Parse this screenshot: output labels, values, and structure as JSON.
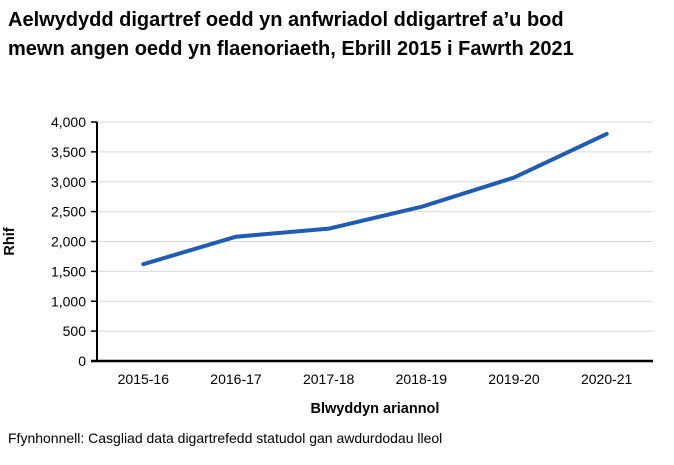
{
  "header": {
    "title": "Aelwydydd digartref oedd yn anfwriadol ddigartref a’u bod mewn angen oedd yn flaenoriaeth, Ebrill 2015 i Fawrth 2021"
  },
  "footer": {
    "source": "Ffynhonnell: Casgliad data digartrefedd statudol gan awdurdodau lleol"
  },
  "chart_data": {
    "type": "line",
    "title": "Aelwydydd digartref oedd yn anfwriadol ddigartref a’u bod mewn angen oedd yn flaenoriaeth, Ebrill 2015 i Fawrth 2021",
    "categories": [
      "2015-16",
      "2016-17",
      "2017-18",
      "2018-19",
      "2019-20",
      "2020-21"
    ],
    "values": [
      1620,
      2080,
      2215,
      2580,
      3070,
      3800
    ],
    "xlabel": "Blwyddyn ariannol",
    "ylabel": "Rhif",
    "ylim": [
      0,
      4000
    ],
    "ytick_step": 500,
    "ytick_labels": [
      "0",
      "500",
      "1,000",
      "1,500",
      "2,000",
      "2,500",
      "3,000",
      "3,500",
      "4,000"
    ],
    "grid": "horizontal-only",
    "legend": "none",
    "line_color": "#1f5cb4",
    "axis_color": "#000000",
    "gridline_color": "#d9d9d9",
    "source": "Ffynhonnell: Casgliad data digartrefedd statudol gan awdurdodau lleol"
  }
}
